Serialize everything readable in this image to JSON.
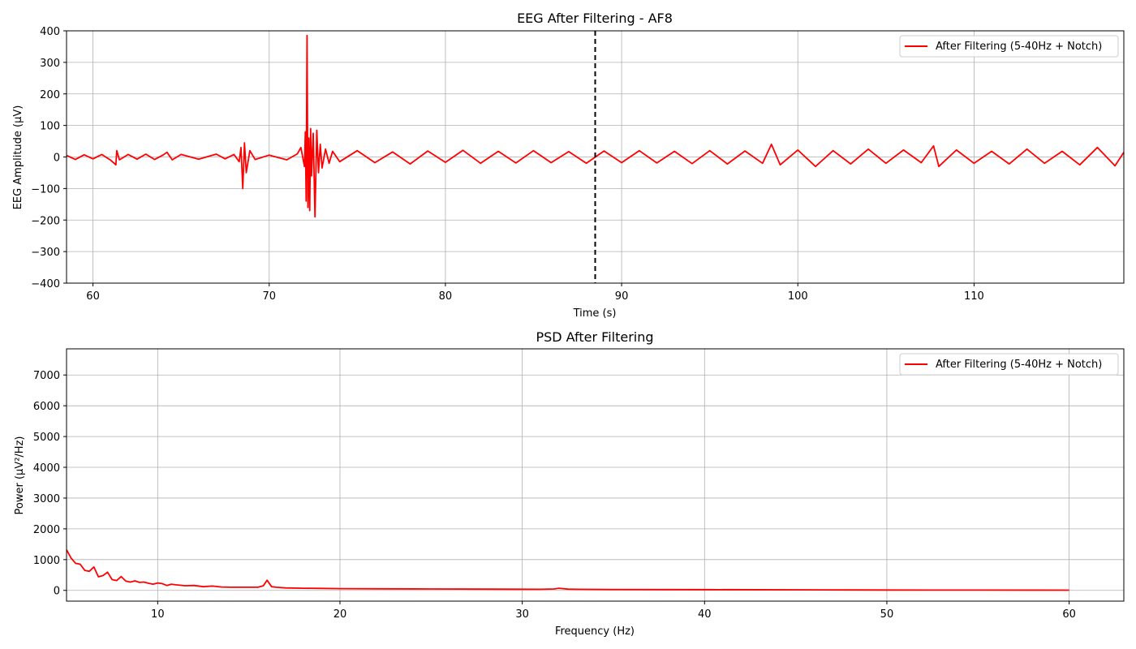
{
  "chart_data": [
    {
      "type": "line",
      "title": "EEG After Filtering - AF8",
      "xlabel": "Time (s)",
      "ylabel": "EEG Amplitude (µV)",
      "xlim": [
        58.5,
        118.5
      ],
      "ylim": [
        -400,
        400
      ],
      "x_ticks": [
        60,
        70,
        80,
        90,
        100,
        110
      ],
      "y_ticks": [
        -400,
        -300,
        -200,
        -100,
        0,
        100,
        200,
        300,
        400
      ],
      "y_tick_labels": [
        "−400",
        "−300",
        "−200",
        "−100",
        "0",
        "100",
        "200",
        "300",
        "400"
      ],
      "grid": true,
      "legend_position": "top-right",
      "marker_line": {
        "x": 88.5,
        "style": "dashed",
        "color": "#000000"
      },
      "series": [
        {
          "name": "After Filtering (5-40Hz + Notch)",
          "color": "#ff0000",
          "x": [
            58.5,
            59.0,
            59.5,
            60.0,
            60.5,
            61.0,
            61.3,
            61.35,
            61.5,
            62.0,
            62.5,
            63.0,
            63.5,
            64.0,
            64.2,
            64.5,
            65.0,
            66.0,
            67.0,
            67.5,
            68.0,
            68.3,
            68.4,
            68.5,
            68.6,
            68.7,
            68.9,
            69.2,
            70.0,
            71.0,
            71.6,
            71.8,
            72.0,
            72.05,
            72.1,
            72.15,
            72.2,
            72.25,
            72.3,
            72.35,
            72.4,
            72.5,
            72.6,
            72.7,
            72.8,
            72.9,
            73.0,
            73.2,
            73.4,
            73.6,
            74.0,
            75.0,
            76.0,
            77.0,
            78.0,
            79.0,
            80.0,
            81.0,
            82.0,
            83.0,
            84.0,
            85.0,
            86.0,
            87.0,
            88.0,
            89.0,
            90.0,
            91.0,
            92.0,
            93.0,
            94.0,
            95.0,
            96.0,
            97.0,
            98.0,
            98.5,
            99.0,
            100.0,
            101.0,
            102.0,
            103.0,
            104.0,
            105.0,
            106.0,
            107.0,
            107.7,
            108.0,
            109.0,
            110.0,
            111.0,
            112.0,
            113.0,
            114.0,
            115.0,
            116.0,
            117.0,
            118.0,
            118.5
          ],
          "y": [
            5,
            -8,
            7,
            -6,
            8,
            -10,
            -25,
            20,
            -9,
            8,
            -7,
            9,
            -8,
            7,
            15,
            -9,
            8,
            -7,
            9,
            -6,
            8,
            -15,
            30,
            -100,
            45,
            -50,
            20,
            -8,
            6,
            -9,
            10,
            30,
            -30,
            80,
            -140,
            385,
            -160,
            60,
            -170,
            90,
            -60,
            75,
            -190,
            85,
            -50,
            40,
            -35,
            25,
            -20,
            18,
            -15,
            20,
            -18,
            16,
            -22,
            19,
            -17,
            21,
            -20,
            18,
            -19,
            20,
            -18,
            17,
            -20,
            19,
            -18,
            20,
            -19,
            18,
            -21,
            20,
            -22,
            19,
            -20,
            40,
            -25,
            22,
            -30,
            20,
            -22,
            25,
            -20,
            22,
            -18,
            35,
            -30,
            22,
            -20,
            18,
            -22,
            25,
            -20,
            18,
            -25,
            30,
            -28,
            15
          ]
        }
      ]
    },
    {
      "type": "line",
      "title": "PSD After Filtering",
      "xlabel": "Frequency (Hz)",
      "ylabel": "Power (µV²/Hz)",
      "xlim": [
        5,
        63
      ],
      "ylim": [
        -350,
        7850
      ],
      "x_ticks": [
        10,
        20,
        30,
        40,
        50,
        60
      ],
      "y_ticks": [
        0,
        1000,
        2000,
        3000,
        4000,
        5000,
        6000,
        7000
      ],
      "grid": true,
      "legend_position": "top-right",
      "series": [
        {
          "name": "After Filtering (5-40Hz + Notch)",
          "color": "#ff0000",
          "x": [
            5.0,
            5.25,
            5.5,
            5.75,
            6.0,
            6.25,
            6.5,
            6.75,
            7.0,
            7.25,
            7.5,
            7.75,
            8.0,
            8.25,
            8.5,
            8.75,
            9.0,
            9.25,
            9.5,
            9.75,
            10.0,
            10.25,
            10.5,
            10.75,
            11.0,
            11.5,
            12.0,
            12.5,
            13.0,
            13.5,
            14.0,
            15.0,
            15.5,
            15.8,
            16.0,
            16.25,
            16.5,
            17.0,
            18.0,
            19.0,
            20.0,
            22.0,
            25.0,
            28.0,
            31.0,
            31.75,
            32.0,
            32.5,
            33.0,
            35.0,
            40.0,
            45.0,
            48.0,
            50.0,
            55.0,
            60.0
          ],
          "y": [
            1320,
            1050,
            880,
            850,
            650,
            620,
            760,
            440,
            480,
            590,
            350,
            320,
            450,
            300,
            270,
            310,
            260,
            270,
            230,
            200,
            240,
            220,
            160,
            200,
            180,
            150,
            160,
            120,
            140,
            110,
            100,
            100,
            100,
            150,
            330,
            120,
            100,
            80,
            70,
            65,
            55,
            50,
            45,
            40,
            35,
            45,
            70,
            40,
            35,
            30,
            25,
            20,
            15,
            10,
            8,
            5
          ]
        }
      ]
    }
  ]
}
